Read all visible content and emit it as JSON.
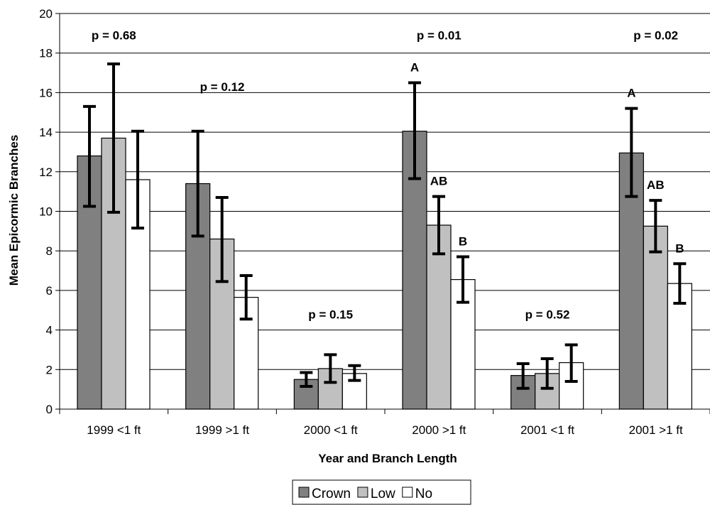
{
  "chart_data": {
    "type": "bar",
    "categories": [
      "1999 <1 ft",
      "1999 >1 ft",
      "2000 <1 ft",
      "2000 >1 ft",
      "2001 <1 ft",
      "2001 >1 ft"
    ],
    "xlabel": "Year and Branch Length",
    "ylabel": "Mean Epicormic Branches",
    "ylim": [
      0,
      20
    ],
    "yticks": [
      "0",
      "2",
      "4",
      "6",
      "8",
      "10",
      "12",
      "14",
      "16",
      "18",
      "20"
    ],
    "grid": true,
    "legend_position": "bottom",
    "series": [
      {
        "name": "Crown",
        "color": "#808080",
        "values": [
          12.8,
          11.4,
          1.5,
          14.05,
          1.7,
          12.95
        ],
        "err_low": [
          10.25,
          8.75,
          1.15,
          11.65,
          1.05,
          10.75
        ],
        "err_high": [
          15.3,
          14.05,
          1.85,
          16.5,
          2.3,
          15.2
        ],
        "labels": [
          "",
          "",
          "",
          "A",
          "",
          "A"
        ]
      },
      {
        "name": "Low",
        "color": "#c0c0c0",
        "values": [
          13.7,
          8.6,
          2.05,
          9.3,
          1.8,
          9.25
        ],
        "err_low": [
          9.95,
          6.45,
          1.35,
          7.85,
          1.05,
          7.95
        ],
        "err_high": [
          17.45,
          10.7,
          2.75,
          10.75,
          2.55,
          10.55
        ],
        "labels": [
          "",
          "",
          "",
          "AB",
          "",
          "AB"
        ]
      },
      {
        "name": "No",
        "color": "#ffffff",
        "values": [
          11.6,
          5.65,
          1.8,
          6.55,
          2.35,
          6.35
        ],
        "err_low": [
          9.15,
          4.55,
          1.45,
          5.4,
          1.4,
          5.35
        ],
        "err_high": [
          14.05,
          6.75,
          2.2,
          7.7,
          3.25,
          7.35
        ],
        "labels": [
          "",
          "",
          "",
          "B",
          "",
          "B"
        ]
      }
    ],
    "annotations": [
      {
        "text": "p = 0.68",
        "category": 0,
        "y": 18.9
      },
      {
        "text": "p = 0.12",
        "category": 1,
        "y": 16.3
      },
      {
        "text": "p = 0.15",
        "category": 2,
        "y": 4.8
      },
      {
        "text": "p = 0.01",
        "category": 3,
        "y": 18.9
      },
      {
        "text": "p = 0.52",
        "category": 4,
        "y": 4.8
      },
      {
        "text": "p = 0.02",
        "category": 5,
        "y": 18.9
      }
    ]
  }
}
